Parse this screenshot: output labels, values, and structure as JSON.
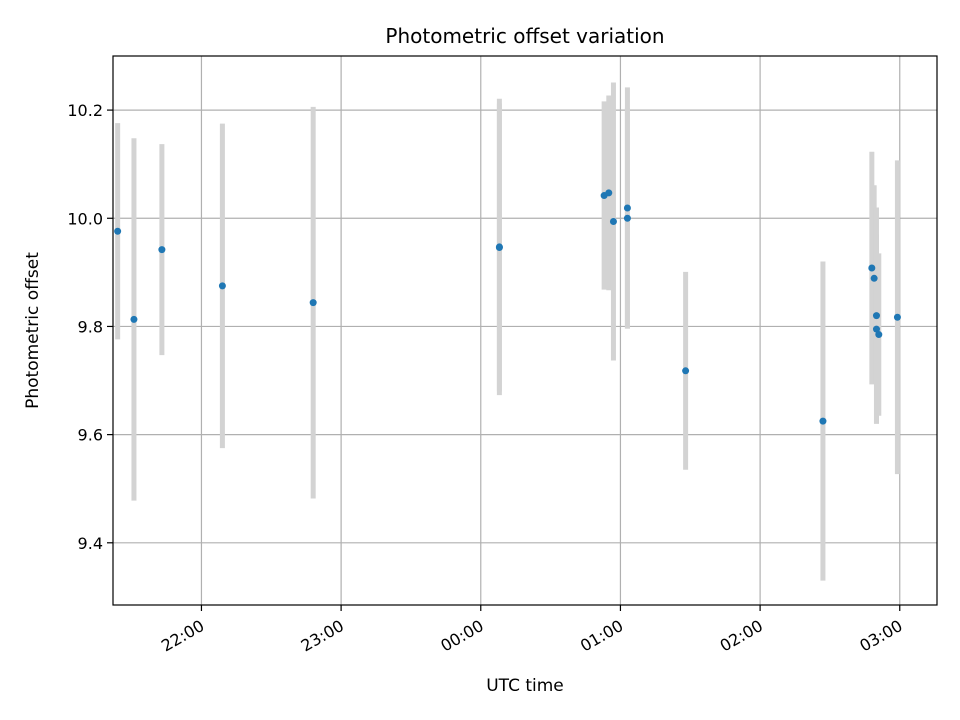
{
  "chart_data": {
    "type": "scatter",
    "title": "Photometric offset variation",
    "xlabel": "UTC time",
    "ylabel": "Photometric offset",
    "x_unit": "UTC time (HH:MM), observation spans 21:00 to 03:00 across midnight",
    "xlim": [
      "21:22",
      "03:16"
    ],
    "ylim": [
      9.285,
      10.3
    ],
    "grid": true,
    "x_ticks": [
      "22:00",
      "23:00",
      "00:00",
      "01:00",
      "02:00",
      "03:00"
    ],
    "y_ticks": [
      "9.4",
      "9.6",
      "9.8",
      "10.0",
      "10.2"
    ],
    "colors": {
      "marker": "#1f77b4",
      "errorbar": "#d3d3d3",
      "grid": "#b0b0b0"
    },
    "series": [
      {
        "points": [
          {
            "x": "21:24",
            "y": 9.976,
            "yerr": 0.2
          },
          {
            "x": "21:31",
            "y": 9.813,
            "yerr": 0.335
          },
          {
            "x": "21:43",
            "y": 9.942,
            "yerr": 0.195
          },
          {
            "x": "22:09",
            "y": 9.875,
            "yerr": 0.3
          },
          {
            "x": "22:48",
            "y": 9.844,
            "yerr": 0.362
          },
          {
            "x": "00:08",
            "y": 9.947,
            "yerr": 0.274
          },
          {
            "x": "00:08",
            "y": 9.946,
            "yerr": 0.266
          },
          {
            "x": "00:53",
            "y": 10.042,
            "yerr": 0.174
          },
          {
            "x": "00:55",
            "y": 10.047,
            "yerr": 0.18
          },
          {
            "x": "00:57",
            "y": 9.994,
            "yerr": 0.257
          },
          {
            "x": "01:03",
            "y": 10.019,
            "yerr": 0.223
          },
          {
            "x": "01:03",
            "y": 10.0,
            "yerr": 0.204
          },
          {
            "x": "01:28",
            "y": 9.718,
            "yerr": 0.183
          },
          {
            "x": "02:27",
            "y": 9.625,
            "yerr": 0.295
          },
          {
            "x": "02:48",
            "y": 9.908,
            "yerr": 0.215
          },
          {
            "x": "02:49",
            "y": 9.889,
            "yerr": 0.172
          },
          {
            "x": "02:50",
            "y": 9.82,
            "yerr": 0.2
          },
          {
            "x": "02:50",
            "y": 9.795,
            "yerr": 0.175
          },
          {
            "x": "02:51",
            "y": 9.785,
            "yerr": 0.15
          },
          {
            "x": "02:59",
            "y": 9.817,
            "yerr": 0.29
          }
        ]
      }
    ]
  }
}
